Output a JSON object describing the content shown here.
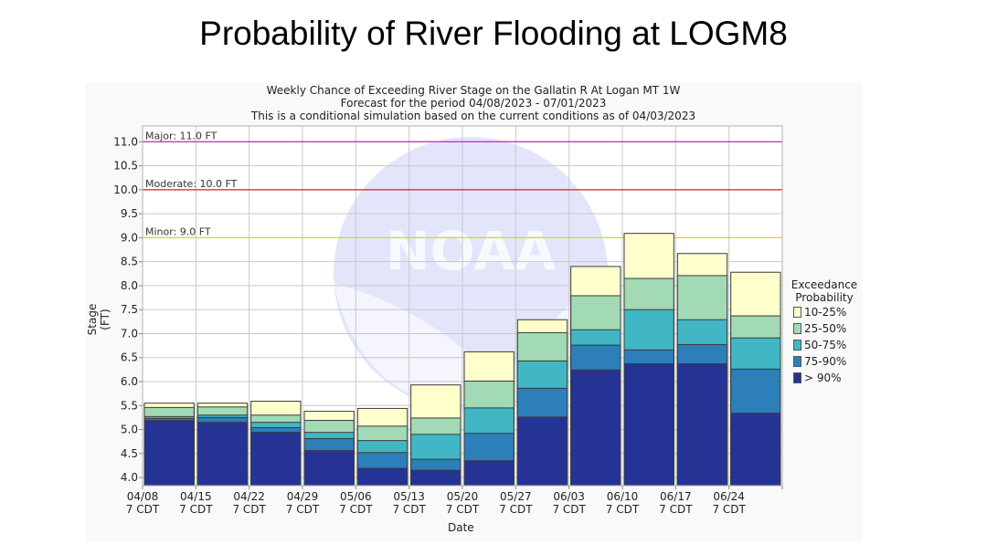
{
  "page": {
    "title": "Probability of River Flooding at LOGM8"
  },
  "chart_data": {
    "type": "bar",
    "stacked": true,
    "title": "Weekly Chance of Exceeding River Stage on the Gallatin R At Logan MT 1W",
    "subtitle": [
      "Forecast for the period 04/08/2023 - 07/01/2023",
      "This is a conditional simulation based on the current conditions as of 04/03/2023"
    ],
    "xlabel": "Date",
    "ylabel": "Stage (FT)",
    "ylim": [
      3.83,
      11.33
    ],
    "yticks": [
      "4.0",
      "4.5",
      "5.0",
      "5.5",
      "6.0",
      "6.5",
      "7.0",
      "7.5",
      "8.0",
      "8.5",
      "9.0",
      "9.5",
      "10.0",
      "10.5",
      "11.0"
    ],
    "grid": true,
    "categories": [
      {
        "date": "04/08",
        "time": "7 CDT"
      },
      {
        "date": "04/15",
        "time": "7 CDT"
      },
      {
        "date": "04/22",
        "time": "7 CDT"
      },
      {
        "date": "04/29",
        "time": "7 CDT"
      },
      {
        "date": "05/06",
        "time": "7 CDT"
      },
      {
        "date": "05/13",
        "time": "7 CDT"
      },
      {
        "date": "05/20",
        "time": "7 CDT"
      },
      {
        "date": "05/27",
        "time": "7 CDT"
      },
      {
        "date": "06/03",
        "time": "7 CDT"
      },
      {
        "date": "06/10",
        "time": "7 CDT"
      },
      {
        "date": "06/17",
        "time": "7 CDT"
      },
      {
        "date": "06/24",
        "time": "7 CDT"
      }
    ],
    "thresholds": [
      {
        "label": "Major: 11.0 FT",
        "value": 11.0,
        "color": "#cc33cc"
      },
      {
        "label": "Moderate: 10.0 FT",
        "value": 10.0,
        "color": "#cc2233"
      },
      {
        "label": "Minor: 9.0 FT",
        "value": 9.0,
        "color": "#e8d020"
      }
    ],
    "legend": {
      "title": [
        "Exceedance",
        "Probability"
      ],
      "placement": "right"
    },
    "series": [
      {
        "name": "> 90%",
        "color": "#253494",
        "values": [
          5.19,
          5.15,
          4.94,
          4.56,
          4.19,
          4.15,
          4.35,
          5.26,
          6.24,
          6.37,
          6.37,
          5.34
        ]
      },
      {
        "name": "75-90%",
        "color": "#2c7fb8",
        "values": [
          5.23,
          5.25,
          5.04,
          4.81,
          4.52,
          4.38,
          4.92,
          5.86,
          6.76,
          6.66,
          6.77,
          6.26
        ]
      },
      {
        "name": "50-75%",
        "color": "#41b6c4",
        "values": [
          5.27,
          5.3,
          5.15,
          4.94,
          4.77,
          4.9,
          5.45,
          6.43,
          7.08,
          7.5,
          7.29,
          6.91
        ]
      },
      {
        "name": "25-50%",
        "color": "#a1dab4",
        "values": [
          5.46,
          5.47,
          5.3,
          5.19,
          5.07,
          5.24,
          6.01,
          7.02,
          7.79,
          8.15,
          8.21,
          7.37
        ]
      },
      {
        "name": "10-25%",
        "color": "#ffffcc",
        "values": [
          5.55,
          5.55,
          5.59,
          5.38,
          5.44,
          5.93,
          6.62,
          7.29,
          8.4,
          9.09,
          8.67,
          8.28
        ]
      }
    ],
    "watermark": "NOAA"
  }
}
